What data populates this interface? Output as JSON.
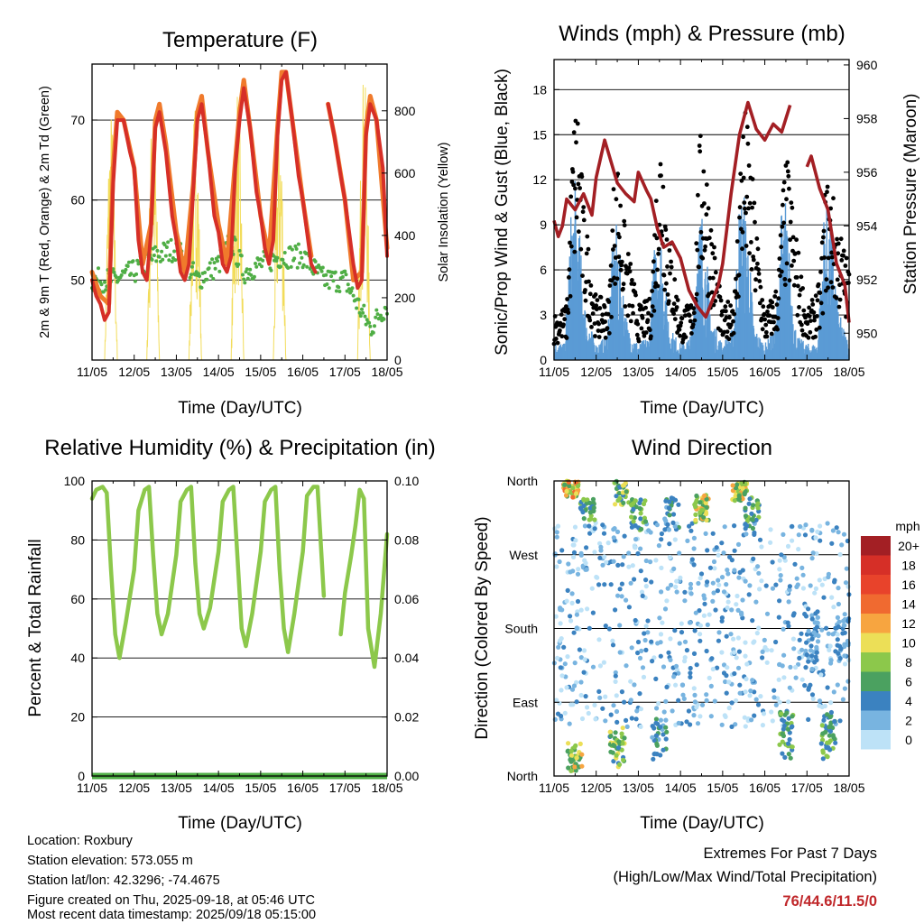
{
  "chart_data": [
    {
      "id": "temperature",
      "type": "line",
      "title": "Temperature (F)",
      "xlabel": "Time (Day/UTC)",
      "ylabel": "2m & 9m T (Red, Orange) & 2m Td (Green)",
      "ylabel_right": "Solar Insolation (Yellow)",
      "x_ticks": [
        "11/05",
        "12/05",
        "13/05",
        "14/05",
        "15/05",
        "16/05",
        "17/05",
        "18/05"
      ],
      "ylim": [
        40,
        77
      ],
      "y_ticks": [
        50,
        60,
        70
      ],
      "ylim_right": [
        0,
        950
      ],
      "y_ticks_right": [
        0,
        200,
        400,
        600,
        800
      ],
      "grid": true,
      "series": [
        {
          "name": "2m T",
          "color": "#d62f27",
          "axis": "left",
          "x": [
            0,
            0.1,
            0.2,
            0.3,
            0.4,
            0.5,
            0.6,
            0.75,
            0.9,
            1.0,
            1.1,
            1.2,
            1.3,
            1.4,
            1.5,
            1.6,
            1.75,
            1.9,
            2.0,
            2.1,
            2.2,
            2.3,
            2.4,
            2.5,
            2.6,
            2.75,
            2.9,
            3.0,
            3.1,
            3.2,
            3.3,
            3.4,
            3.5,
            3.6,
            3.75,
            3.9,
            4.0,
            4.1,
            4.2,
            4.3,
            4.4,
            4.5,
            4.6,
            4.75,
            4.9,
            5.0,
            5.1,
            5.2,
            5.3,
            5.4,
            5.5,
            5.6,
            5.75,
            5.9,
            6.0,
            6.1,
            6.2,
            6.3,
            6.4,
            6.5,
            6.6,
            6.75,
            6.9,
            7.0
          ],
          "y": [
            50,
            48,
            47,
            45,
            46,
            62,
            70,
            70,
            66,
            64,
            55,
            51,
            50,
            56,
            69,
            71,
            66,
            58,
            55,
            51,
            50,
            52,
            61,
            70,
            72,
            66,
            58,
            56,
            52,
            51,
            53,
            64,
            70,
            74,
            69,
            61,
            58,
            54,
            52,
            55,
            68,
            75,
            76,
            70,
            63,
            60,
            56,
            52,
            51,
            null,
            null,
            72,
            68,
            63,
            60,
            56,
            52,
            49,
            50,
            68,
            72,
            70,
            64,
            53
          ]
        },
        {
          "name": "9m T",
          "color": "#f07a2c",
          "axis": "left",
          "x": [
            0,
            0.2,
            0.4,
            0.5,
            0.6,
            0.75,
            1.0,
            1.2,
            1.4,
            1.5,
            1.6,
            1.75,
            2.0,
            2.2,
            2.4,
            2.5,
            2.6,
            2.75,
            3.0,
            3.2,
            3.4,
            3.5,
            3.6,
            3.75,
            4.0,
            4.2,
            4.4,
            4.5,
            4.6,
            4.75,
            5.0,
            5.2,
            5.4,
            5.6,
            5.75,
            6.0,
            6.2,
            6.4,
            6.5,
            6.6,
            6.75,
            7.0
          ],
          "y": [
            51,
            48,
            47,
            64,
            71,
            70,
            64,
            52,
            57,
            70,
            72,
            67,
            56,
            51,
            62,
            71,
            73,
            66,
            57,
            52,
            65,
            71,
            75,
            69,
            58,
            53,
            69,
            76,
            76,
            70,
            60,
            53,
            null,
            72,
            68,
            60,
            50,
            51,
            69,
            73,
            70,
            54
          ]
        },
        {
          "name": "2m Td",
          "color": "#4fae45",
          "axis": "left",
          "x": [
            0,
            0.3,
            0.5,
            1.0,
            1.5,
            2.0,
            2.5,
            3.0,
            3.3,
            3.6,
            4.0,
            4.5,
            5.0,
            5.5,
            6.0,
            6.3,
            6.6,
            7.0
          ],
          "y": [
            50,
            50,
            50,
            51,
            53,
            54,
            50,
            52,
            55,
            51,
            52,
            53,
            53,
            50,
            50,
            47,
            44,
            47
          ]
        },
        {
          "name": "Solar Insolation",
          "color": "#f2dc5a",
          "axis": "right",
          "x": [
            0.3,
            0.45,
            0.6,
            1.3,
            1.45,
            1.6,
            2.3,
            2.45,
            2.6,
            3.3,
            3.45,
            3.6,
            4.3,
            4.45,
            4.6,
            5.3,
            5.45,
            5.6,
            6.3,
            6.45,
            6.6
          ],
          "y": [
            0,
            820,
            0,
            0,
            870,
            0,
            0,
            860,
            0,
            0,
            900,
            0,
            0,
            810,
            0,
            0,
            0,
            0,
            0,
            940,
            0
          ]
        }
      ]
    },
    {
      "id": "winds-pressure",
      "type": "line",
      "title": "Winds (mph) & Pressure (mb)",
      "xlabel": "Time (Day/UTC)",
      "ylabel": "Sonic/Prop Wind & Gust (Blue, Black)",
      "ylabel_right": "Station Pressure (Maroon)",
      "x_ticks": [
        "11/05",
        "12/05",
        "13/05",
        "14/05",
        "15/05",
        "16/05",
        "17/05",
        "18/05"
      ],
      "ylim": [
        0,
        20
      ],
      "y_ticks": [
        0,
        3,
        6,
        9,
        12,
        15,
        18
      ],
      "ylim_right": [
        949.0,
        960.2
      ],
      "y_ticks_right": [
        950,
        952,
        954,
        956,
        958,
        960
      ],
      "grid": true,
      "series": [
        {
          "name": "Sonic/Prop Wind",
          "color": "#5b9bd5",
          "axis": "left",
          "x": [
            0,
            0.25,
            0.4,
            0.5,
            0.6,
            0.75,
            1.0,
            1.25,
            1.4,
            1.5,
            1.6,
            1.75,
            2.0,
            2.25,
            2.4,
            2.5,
            2.6,
            2.75,
            3.0,
            3.25,
            3.4,
            3.5,
            3.6,
            3.75,
            4.0,
            4.25,
            4.4,
            4.5,
            4.6,
            4.75,
            5.0,
            5.25,
            5.4,
            5.5,
            5.6,
            5.75,
            6.0,
            6.25,
            6.4,
            6.5,
            6.6,
            6.75,
            7.0
          ],
          "y": [
            1.2,
            1.0,
            9.0,
            11.0,
            8.0,
            3.0,
            1.0,
            1.5,
            7.5,
            8.5,
            5.5,
            2.0,
            1.0,
            1.5,
            8.0,
            9.0,
            6.0,
            2.0,
            1.0,
            1.5,
            8.5,
            9.5,
            7.0,
            2.5,
            1.0,
            2.0,
            10.0,
            10.5,
            8.0,
            2.0,
            1.0,
            2.0,
            9.5,
            10.0,
            6.0,
            1.5,
            1.0,
            1.0,
            9.0,
            9.5,
            8.0,
            3.0,
            1.0
          ]
        },
        {
          "name": "Gust",
          "color": "#000000",
          "axis": "left",
          "x": [
            0,
            0.3,
            0.45,
            0.55,
            0.7,
            1.0,
            1.3,
            1.45,
            1.55,
            1.7,
            2.0,
            2.3,
            2.45,
            2.55,
            2.7,
            3.0,
            3.3,
            3.45,
            3.55,
            3.7,
            4.0,
            4.3,
            4.45,
            4.55,
            4.7,
            5.0,
            5.3,
            5.45,
            5.55,
            5.7,
            6.0,
            6.3,
            6.45,
            6.55,
            6.7,
            7.0
          ],
          "y": [
            3.0,
            3.5,
            15.0,
            17.8,
            10.0,
            4.0,
            4.0,
            14.0,
            12.0,
            8.0,
            3.5,
            4.0,
            13.0,
            16.0,
            9.0,
            3.0,
            4.0,
            14.0,
            15.5,
            10.0,
            3.0,
            5.0,
            15.5,
            16.2,
            12.0,
            3.0,
            5.0,
            12.0,
            13.0,
            9.0,
            3.0,
            5.0,
            12.0,
            11.5,
            9.5,
            6.0
          ]
        },
        {
          "name": "Station Pressure",
          "color": "#a31f24",
          "axis": "right",
          "x": [
            0,
            0.1,
            0.2,
            0.3,
            0.5,
            0.7,
            0.9,
            1.0,
            1.2,
            1.35,
            1.5,
            1.7,
            1.9,
            2.0,
            2.2,
            2.3,
            2.45,
            2.6,
            2.8,
            3.0,
            3.2,
            3.4,
            3.6,
            3.8,
            3.9,
            4.0,
            4.2,
            4.4,
            4.6,
            4.8,
            5.0,
            5.2,
            5.4,
            5.6,
            5.8,
            5.9,
            6.0,
            6.1,
            6.3,
            6.5,
            6.7,
            6.9,
            7.0
          ],
          "y": [
            954.2,
            953.6,
            954.0,
            955.0,
            954.6,
            955.2,
            954.4,
            955.8,
            957.2,
            956.4,
            955.6,
            955.2,
            954.9,
            956.0,
            955.3,
            955.0,
            953.9,
            953.2,
            953.4,
            952.8,
            951.6,
            951.0,
            950.6,
            951.4,
            951.8,
            952.6,
            955.2,
            957.4,
            958.6,
            957.6,
            957.2,
            957.8,
            957.5,
            958.5,
            null,
            null,
            956.2,
            956.6,
            955.4,
            954.6,
            952.6,
            951.8,
            950.4
          ]
        }
      ]
    },
    {
      "id": "humidity-precip",
      "type": "line",
      "title": "Relative Humidity (%) & Precipitation (in)",
      "xlabel": "Time (Day/UTC)",
      "ylabel": "Percent & Total Rainfall",
      "x_ticks": [
        "11/05",
        "12/05",
        "13/05",
        "14/05",
        "15/05",
        "16/05",
        "17/05",
        "18/05"
      ],
      "ylim": [
        0,
        100
      ],
      "y_ticks": [
        0,
        20,
        40,
        60,
        80,
        100
      ],
      "ylim_right": [
        0,
        0.1
      ],
      "y_ticks_right": [
        "0.00",
        "0.02",
        "0.04",
        "0.06",
        "0.08",
        "0.10"
      ],
      "grid": true,
      "series": [
        {
          "name": "Relative Humidity",
          "color": "#8cc84b",
          "axis": "left",
          "x": [
            0,
            0.1,
            0.25,
            0.35,
            0.45,
            0.55,
            0.65,
            0.8,
            1.0,
            1.1,
            1.25,
            1.35,
            1.45,
            1.55,
            1.65,
            1.8,
            2.0,
            2.1,
            2.25,
            2.35,
            2.45,
            2.55,
            2.65,
            2.8,
            3.0,
            3.1,
            3.25,
            3.35,
            3.45,
            3.55,
            3.65,
            3.8,
            4.0,
            4.1,
            4.25,
            4.35,
            4.45,
            4.55,
            4.65,
            4.8,
            5.0,
            5.1,
            5.25,
            5.35,
            5.5,
            5.75,
            5.9,
            6.0,
            6.15,
            6.25,
            6.35,
            6.45,
            6.55,
            6.7,
            6.85,
            7.0
          ],
          "y": [
            94,
            97,
            98,
            96,
            70,
            48,
            40,
            52,
            70,
            90,
            97,
            98,
            75,
            55,
            48,
            55,
            75,
            93,
            97,
            98,
            72,
            55,
            50,
            57,
            76,
            93,
            97,
            98,
            74,
            50,
            44,
            55,
            76,
            93,
            97,
            98,
            70,
            50,
            42,
            55,
            76,
            95,
            98,
            98,
            61,
            null,
            48,
            62,
            75,
            85,
            97,
            94,
            50,
            37,
            55,
            82
          ]
        },
        {
          "name": "Total Rainfall",
          "color": "#4fae45",
          "axis": "right",
          "x": [
            0,
            7.0
          ],
          "y": [
            0,
            0
          ]
        }
      ]
    },
    {
      "id": "wind-direction",
      "type": "scatter",
      "title": "Wind Direction",
      "xlabel": "Time (Day/UTC)",
      "ylabel": "Direction (Colored By Speed)",
      "x_ticks": [
        "11/05",
        "12/05",
        "13/05",
        "14/05",
        "15/05",
        "16/05",
        "17/05",
        "18/05"
      ],
      "y_ticks": [
        "North",
        "East",
        "South",
        "West",
        "North"
      ],
      "grid": true,
      "colorbar": {
        "label": "mph",
        "levels": [
          "20+",
          "18",
          "16",
          "14",
          "12",
          "10",
          "8",
          "6",
          "4",
          "2",
          "0"
        ],
        "colors": [
          "#a31f24",
          "#d62f27",
          "#e8432b",
          "#f06a30",
          "#f7a540",
          "#ecdf57",
          "#8cc84b",
          "#4ba160",
          "#3b82c0",
          "#78b4e0",
          "#bde2f7"
        ]
      },
      "direction_clusters": [
        {
          "day": 0.45,
          "direction": "North",
          "speed": "6-10"
        },
        {
          "day": 0.5,
          "direction": "NNE",
          "speed": "6-10"
        },
        {
          "day": 1.5,
          "direction": "NNE",
          "speed": "4-8"
        },
        {
          "day": 3.5,
          "direction": "NW",
          "speed": "6-10"
        },
        {
          "day": 4.4,
          "direction": "North",
          "speed": "8-10"
        },
        {
          "day": 5.5,
          "direction": "NE",
          "speed": "4-6"
        },
        {
          "day": 6.5,
          "direction": "NE",
          "speed": "6-8"
        },
        {
          "day": 6.8,
          "direction": "SSE",
          "speed": "2-4"
        }
      ]
    }
  ],
  "footer": {
    "location": "Location: Roxbury",
    "elevation": "Station elevation: 573.055 m",
    "latlon": "Station lat/lon: 42.3296; -74.4675",
    "created": "Figure created on Thu, 2025-09-18, at 05:46 UTC",
    "timestamp": "Most recent data timestamp: 2025/09/18 05:15:00"
  },
  "extremes": {
    "heading": "Extremes For Past 7 Days",
    "legend": "(High/Low/Max Wind/Total Precipitation)",
    "values": "76/44.6/11.5/0",
    "color": "#c0282b"
  }
}
